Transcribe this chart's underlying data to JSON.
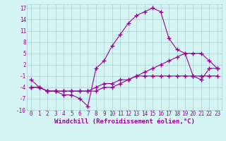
{
  "xlabel": "Windchill (Refroidissement éolien,°C)",
  "hours": [
    0,
    1,
    2,
    3,
    4,
    5,
    6,
    7,
    8,
    9,
    10,
    11,
    12,
    13,
    14,
    15,
    16,
    17,
    18,
    19,
    20,
    21,
    22,
    23
  ],
  "line1": [
    -2,
    -4,
    -5,
    -5,
    -6,
    -6,
    -7,
    -9,
    1,
    3,
    7,
    10,
    13,
    15,
    16,
    17,
    16,
    9,
    6,
    5,
    -1,
    -2,
    1,
    1
  ],
  "line2": [
    -4,
    -4,
    -5,
    -5,
    -5,
    -5,
    -5,
    -5,
    -4,
    -3,
    -3,
    -2,
    -2,
    -1,
    -1,
    -1,
    -1,
    -1,
    -1,
    -1,
    -1,
    -1,
    -1,
    -1
  ],
  "line3": [
    -4,
    -4,
    -5,
    -5,
    -5,
    -5,
    -5,
    -5,
    -5,
    -4,
    -4,
    -3,
    -2,
    -1,
    0,
    1,
    2,
    3,
    4,
    5,
    5,
    5,
    3,
    1
  ],
  "line_color": "#990099",
  "bg_color": "#d5f5f5",
  "grid_color": "#aacece",
  "ylim": [
    -10,
    18
  ],
  "yticks": [
    -10,
    -7,
    -4,
    -1,
    2,
    5,
    8,
    11,
    14,
    17
  ],
  "xlim": [
    -0.5,
    23.5
  ],
  "marker": "+",
  "markersize": 4,
  "markeredgewidth": 1.0,
  "linewidth": 0.8,
  "xlabel_fontsize": 6.5,
  "tick_fontsize": 5.5
}
